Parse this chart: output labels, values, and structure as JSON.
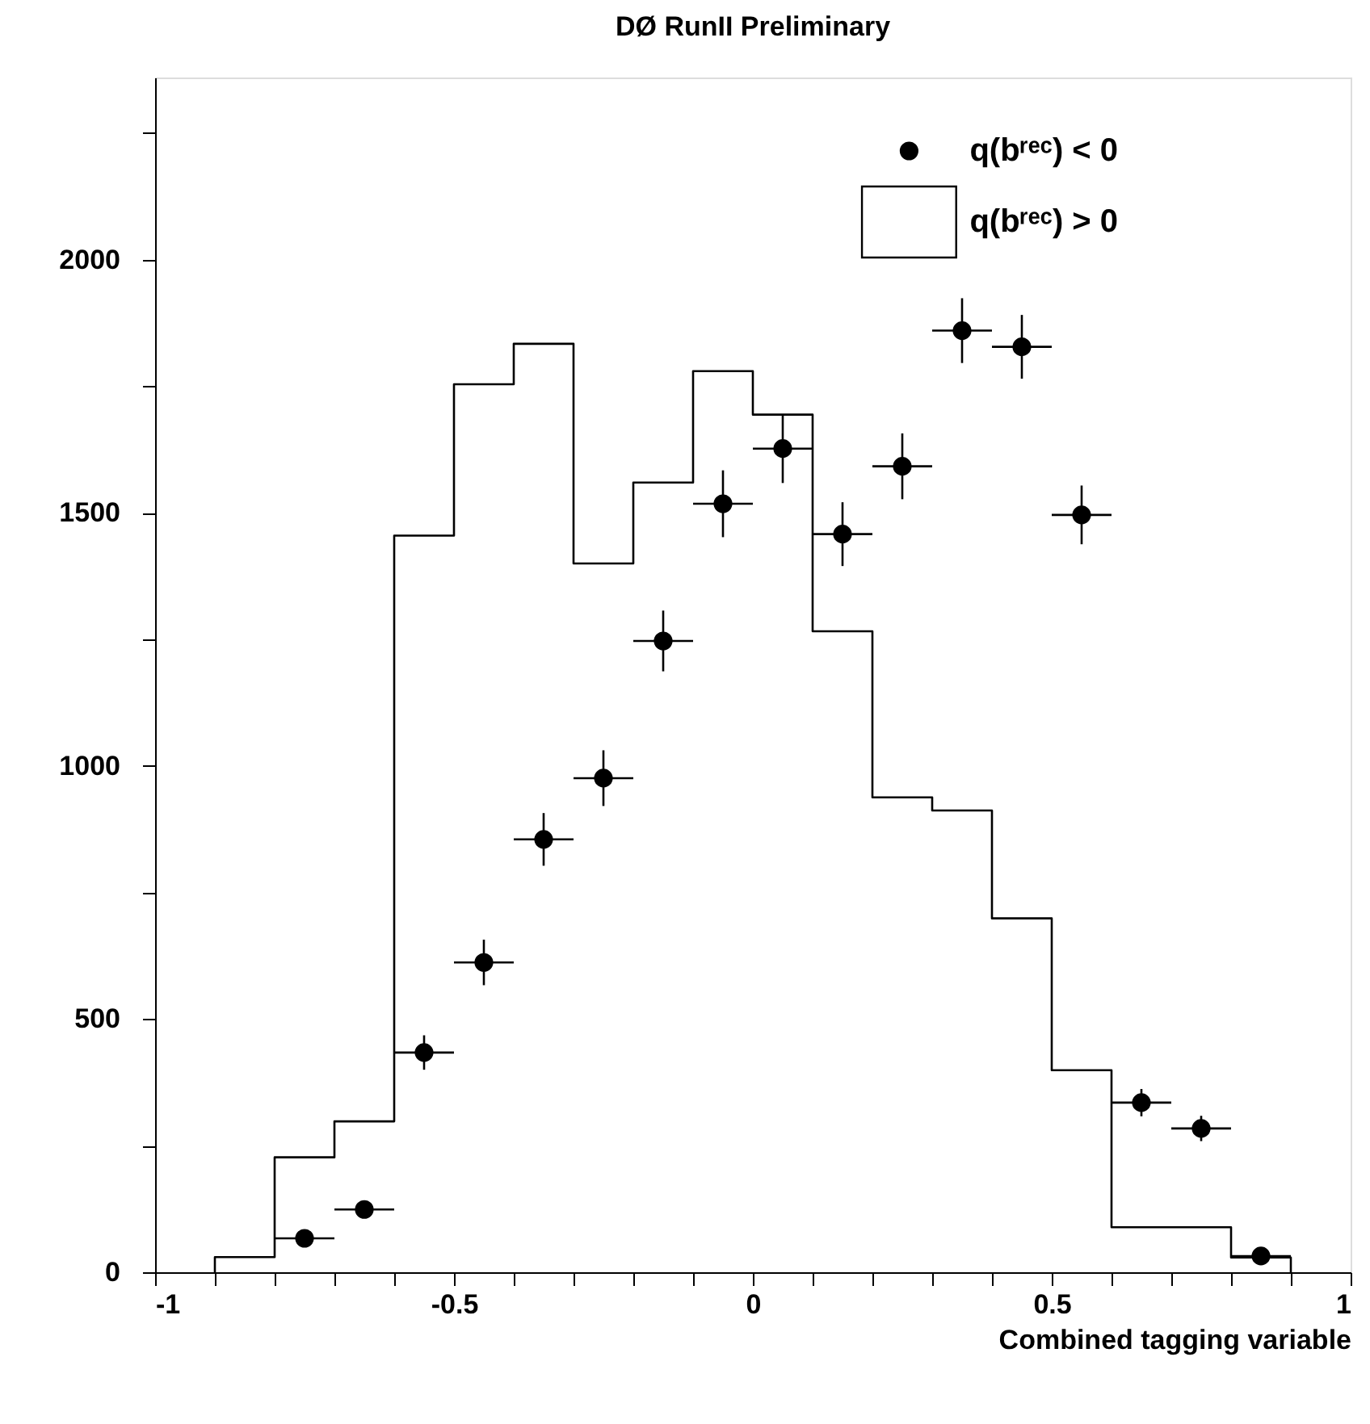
{
  "chart_data": {
    "type": "histogram",
    "title": "DØ RunII  Preliminary",
    "xlabel": "Combined tagging variable",
    "xlim": [
      -1,
      1
    ],
    "ylim": [
      0,
      2360
    ],
    "xticks": [
      -1,
      {
        "value": -0.9,
        "label": null
      },
      {
        "value": -0.8,
        "label": null
      },
      {
        "value": -0.7,
        "label": null
      },
      {
        "value": -0.6,
        "label": null
      },
      -0.5,
      {
        "value": -0.4,
        "label": null
      },
      {
        "value": -0.3,
        "label": null
      },
      {
        "value": -0.2,
        "label": null
      },
      {
        "value": -0.1,
        "label": null
      },
      0,
      {
        "value": 0.1,
        "label": null
      },
      {
        "value": 0.2,
        "label": null
      },
      {
        "value": 0.3,
        "label": null
      },
      {
        "value": 0.4,
        "label": null
      },
      0.5,
      {
        "value": 0.6,
        "label": null
      },
      {
        "value": 0.7,
        "label": null
      },
      {
        "value": 0.8,
        "label": null
      },
      {
        "value": 0.9,
        "label": null
      },
      1
    ],
    "yticks": [
      0,
      {
        "value": 250,
        "label": null
      },
      500,
      {
        "value": 750,
        "label": null
      },
      1000,
      {
        "value": 1250,
        "label": null
      },
      1500,
      {
        "value": 1750,
        "label": null
      },
      2000,
      {
        "value": 2250,
        "label": null
      }
    ],
    "grid": false,
    "legend": "top right",
    "series": [
      {
        "type": "scatter",
        "name": "q(bʳᵉᶜ) < 0",
        "color": "#000000",
        "marker": "circle",
        "x": [
          -0.75,
          -0.65,
          -0.55,
          -0.45,
          -0.35,
          -0.25,
          -0.15,
          -0.05,
          0.05,
          0.15,
          0.25,
          0.35,
          0.45,
          0.55,
          0.65,
          0.75,
          0.85
        ],
        "values": [
          67,
          124,
          434,
          612,
          855,
          976,
          1247,
          1518,
          1627,
          1458,
          1592,
          1860,
          1828,
          1496,
          335,
          284,
          32
        ],
        "errors": [
          12,
          17,
          34,
          45,
          52,
          55,
          60,
          66,
          68,
          63,
          65,
          64,
          63,
          58,
          27,
          25,
          8
        ],
        "xerrors": [
          0.05,
          0.05,
          0.05,
          0.05,
          0.05,
          0.05,
          0.05,
          0.05,
          0.05,
          0.05,
          0.05,
          0.05,
          0.05,
          0.05,
          0.05,
          0.05,
          0.05
        ]
      },
      {
        "name": "q(bʳᵉᶜ) > 0",
        "color": "#000000",
        "bins": [
          -0.9,
          -0.8,
          -0.7,
          -0.6,
          -0.5,
          -0.4,
          -0.3,
          -0.2,
          -0.1,
          0,
          0.1,
          0.2,
          0.3,
          0.4,
          0.5,
          0.6,
          0.7,
          0.8,
          0.9
        ],
        "values": [
          30,
          227,
          298,
          1455,
          1754,
          1834,
          1400,
          1560,
          1780,
          1694,
          1266,
          938,
          912,
          699,
          399,
          89,
          89,
          29
        ]
      }
    ]
  }
}
